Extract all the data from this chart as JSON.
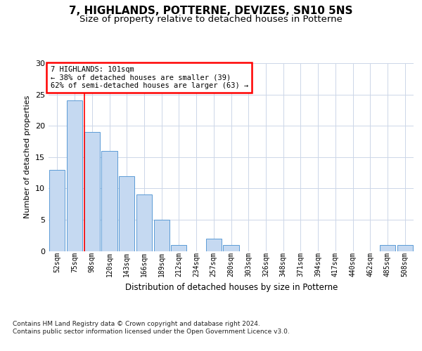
{
  "title1": "7, HIGHLANDS, POTTERNE, DEVIZES, SN10 5NS",
  "title2": "Size of property relative to detached houses in Potterne",
  "xlabel": "Distribution of detached houses by size in Potterne",
  "ylabel": "Number of detached properties",
  "categories": [
    "52sqm",
    "75sqm",
    "98sqm",
    "120sqm",
    "143sqm",
    "166sqm",
    "189sqm",
    "212sqm",
    "234sqm",
    "257sqm",
    "280sqm",
    "303sqm",
    "326sqm",
    "348sqm",
    "371sqm",
    "394sqm",
    "417sqm",
    "440sqm",
    "462sqm",
    "485sqm",
    "508sqm"
  ],
  "values": [
    13,
    24,
    19,
    16,
    12,
    9,
    5,
    1,
    0,
    2,
    1,
    0,
    0,
    0,
    0,
    0,
    0,
    0,
    0,
    1,
    1
  ],
  "bar_color": "#c5d9f1",
  "bar_edge_color": "#5b9bd5",
  "red_line_index": 2,
  "annotation_text": "7 HIGHLANDS: 101sqm\n← 38% of detached houses are smaller (39)\n62% of semi-detached houses are larger (63) →",
  "ylim": [
    0,
    30
  ],
  "yticks": [
    0,
    5,
    10,
    15,
    20,
    25,
    30
  ],
  "footnote": "Contains HM Land Registry data © Crown copyright and database right 2024.\nContains public sector information licensed under the Open Government Licence v3.0.",
  "bg_color": "#ffffff",
  "grid_color": "#ccd6e8",
  "title1_fontsize": 11,
  "title2_fontsize": 9.5,
  "ylabel_fontsize": 8,
  "xlabel_fontsize": 8.5,
  "tick_fontsize": 7,
  "footnote_fontsize": 6.5,
  "annotation_fontsize": 7.5
}
